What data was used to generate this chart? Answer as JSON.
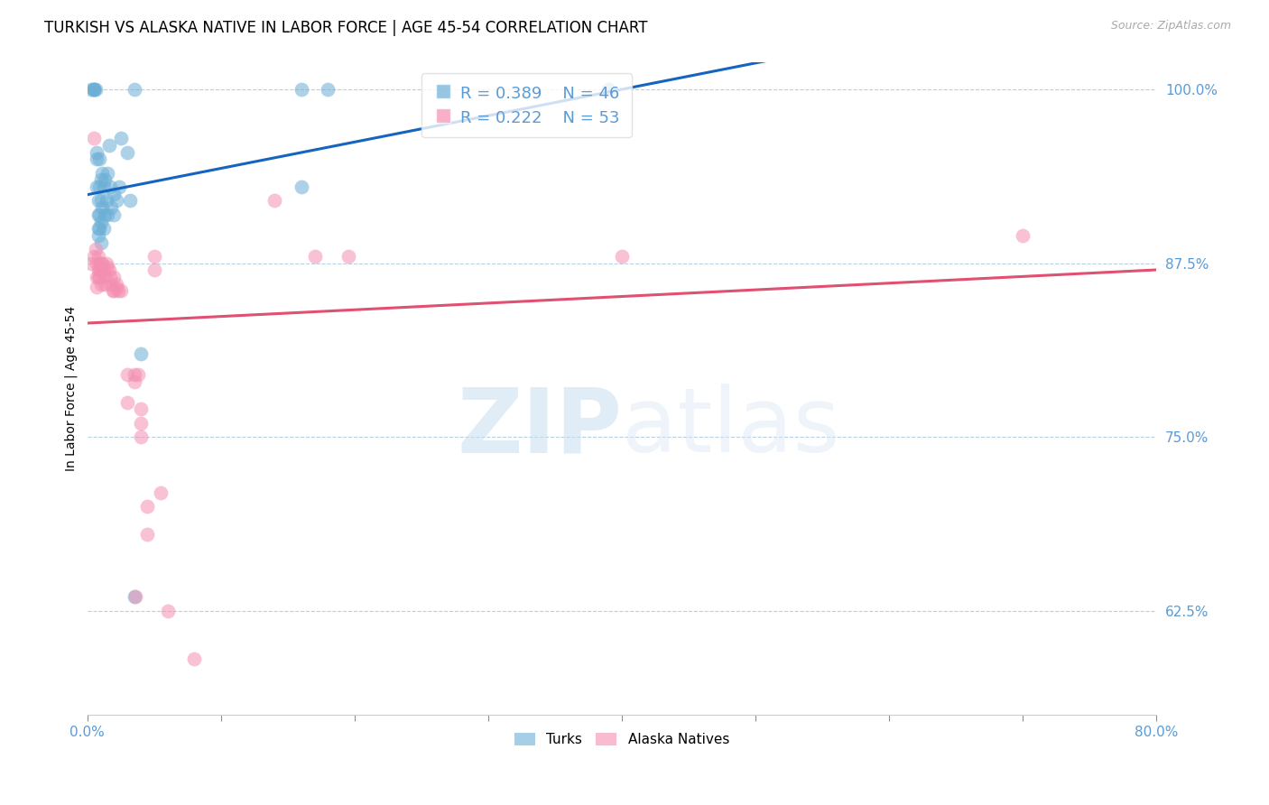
{
  "title": "TURKISH VS ALASKA NATIVE IN LABOR FORCE | AGE 45-54 CORRELATION CHART",
  "source": "Source: ZipAtlas.com",
  "ylabel": "In Labor Force | Age 45-54",
  "xlim": [
    0.0,
    80.0
  ],
  "ylim": [
    55.0,
    102.0
  ],
  "yticks": [
    62.5,
    75.0,
    87.5,
    100.0
  ],
  "ytick_labels": [
    "62.5%",
    "75.0%",
    "87.5%",
    "100.0%"
  ],
  "xtick_positions": [
    0.0,
    10.0,
    20.0,
    30.0,
    40.0,
    50.0,
    60.0,
    70.0,
    80.0
  ],
  "xtick_labels": [
    "0.0%",
    "",
    "",
    "",
    "",
    "",
    "",
    "",
    "80.0%"
  ],
  "turks_R": 0.389,
  "turks_N": 46,
  "alaska_R": 0.222,
  "alaska_N": 53,
  "turks_color": "#6baed6",
  "alaska_color": "#f48fb1",
  "trendline_turks_color": "#1565c0",
  "trendline_alaska_color": "#e05070",
  "turks_scatter": [
    [
      0.3,
      100.0
    ],
    [
      0.5,
      100.0
    ],
    [
      0.5,
      100.0
    ],
    [
      0.5,
      100.0
    ],
    [
      0.6,
      100.0
    ],
    [
      0.7,
      95.5
    ],
    [
      0.7,
      95.0
    ],
    [
      0.7,
      93.0
    ],
    [
      0.8,
      92.0
    ],
    [
      0.8,
      91.0
    ],
    [
      0.8,
      90.0
    ],
    [
      0.8,
      89.5
    ],
    [
      0.9,
      95.0
    ],
    [
      0.9,
      93.0
    ],
    [
      0.9,
      91.0
    ],
    [
      0.9,
      90.0
    ],
    [
      1.0,
      93.5
    ],
    [
      1.0,
      92.0
    ],
    [
      1.0,
      90.5
    ],
    [
      1.0,
      89.0
    ],
    [
      1.1,
      94.0
    ],
    [
      1.1,
      91.5
    ],
    [
      1.2,
      93.0
    ],
    [
      1.2,
      90.0
    ],
    [
      1.3,
      93.5
    ],
    [
      1.3,
      91.0
    ],
    [
      1.4,
      92.0
    ],
    [
      1.5,
      94.0
    ],
    [
      1.5,
      91.0
    ],
    [
      1.6,
      96.0
    ],
    [
      1.7,
      93.0
    ],
    [
      1.8,
      91.5
    ],
    [
      2.0,
      92.5
    ],
    [
      2.0,
      91.0
    ],
    [
      2.2,
      92.0
    ],
    [
      2.4,
      93.0
    ],
    [
      2.5,
      96.5
    ],
    [
      3.0,
      95.5
    ],
    [
      3.2,
      92.0
    ],
    [
      3.5,
      63.5
    ],
    [
      4.0,
      81.0
    ],
    [
      3.5,
      100.0
    ],
    [
      16.0,
      93.0
    ],
    [
      16.0,
      100.0
    ],
    [
      18.0,
      100.0
    ],
    [
      39.0,
      100.0
    ]
  ],
  "alaska_scatter": [
    [
      0.3,
      87.5
    ],
    [
      0.5,
      96.5
    ],
    [
      0.5,
      88.0
    ],
    [
      0.6,
      88.5
    ],
    [
      0.7,
      87.5
    ],
    [
      0.7,
      86.5
    ],
    [
      0.7,
      85.8
    ],
    [
      0.8,
      88.0
    ],
    [
      0.8,
      87.0
    ],
    [
      0.8,
      86.5
    ],
    [
      0.9,
      87.5
    ],
    [
      0.9,
      87.0
    ],
    [
      0.9,
      86.5
    ],
    [
      1.0,
      87.5
    ],
    [
      1.0,
      87.0
    ],
    [
      1.0,
      86.0
    ],
    [
      1.1,
      87.5
    ],
    [
      1.2,
      87.0
    ],
    [
      1.3,
      86.5
    ],
    [
      1.3,
      86.0
    ],
    [
      1.4,
      87.5
    ],
    [
      1.5,
      87.2
    ],
    [
      1.6,
      87.0
    ],
    [
      1.7,
      86.5
    ],
    [
      1.8,
      86.0
    ],
    [
      1.9,
      85.5
    ],
    [
      2.0,
      86.5
    ],
    [
      2.0,
      85.5
    ],
    [
      2.2,
      86.0
    ],
    [
      2.2,
      85.7
    ],
    [
      2.3,
      85.5
    ],
    [
      2.5,
      85.5
    ],
    [
      3.0,
      79.5
    ],
    [
      3.0,
      77.5
    ],
    [
      3.5,
      79.5
    ],
    [
      3.5,
      79.0
    ],
    [
      3.6,
      63.5
    ],
    [
      3.8,
      79.5
    ],
    [
      4.0,
      77.0
    ],
    [
      4.0,
      76.0
    ],
    [
      4.0,
      75.0
    ],
    [
      4.5,
      70.0
    ],
    [
      4.5,
      68.0
    ],
    [
      5.0,
      88.0
    ],
    [
      5.0,
      87.0
    ],
    [
      5.5,
      71.0
    ],
    [
      6.0,
      62.5
    ],
    [
      8.0,
      59.0
    ],
    [
      14.0,
      92.0
    ],
    [
      17.0,
      88.0
    ],
    [
      19.5,
      88.0
    ],
    [
      40.0,
      88.0
    ],
    [
      70.0,
      89.5
    ]
  ],
  "watermark_zip": "ZIP",
  "watermark_atlas": "atlas",
  "background_color": "#ffffff",
  "axis_color": "#5b9bd5",
  "grid_color": "#b8cfe0",
  "title_fontsize": 12,
  "label_fontsize": 10
}
